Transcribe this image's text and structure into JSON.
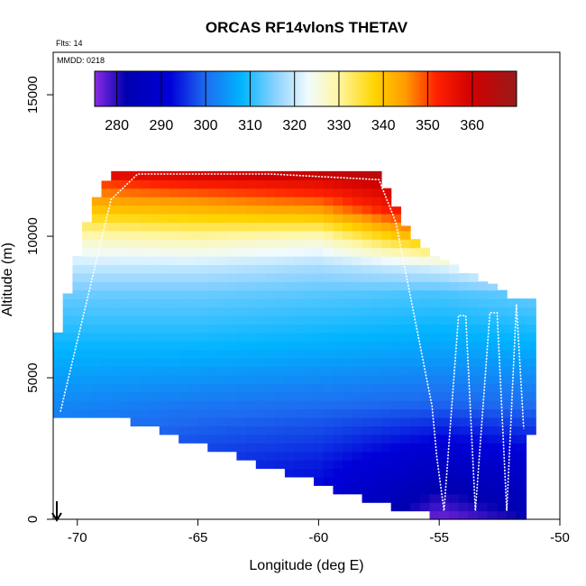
{
  "chart_data": {
    "type": "heatmap",
    "title": "ORCAS RF14vlonS THETAV",
    "xlabel": "Longitude (deg E)",
    "ylabel": "Altitude (m)",
    "xlim": [
      -71,
      -50
    ],
    "ylim": [
      0,
      16500
    ],
    "x_ticks": [
      -70,
      -65,
      -60,
      -55,
      -50
    ],
    "x_tick_labels": [
      "-70",
      "-65",
      "-60",
      "-55",
      "-50"
    ],
    "y_ticks": [
      0,
      5000,
      10000,
      15000
    ],
    "y_tick_labels": [
      "0",
      "5000",
      "10000",
      "15000"
    ],
    "annotation_flts": "Flts: 14",
    "annotation_mmdd": "MMDD: 0218",
    "colorbar": {
      "range": [
        275,
        370
      ],
      "ticks": [
        280,
        290,
        300,
        310,
        320,
        330,
        340,
        350,
        360
      ],
      "tick_labels": [
        "280",
        "290",
        "300",
        "310",
        "320",
        "330",
        "340",
        "350",
        "360"
      ],
      "stops": [
        {
          "v": 275,
          "color": "#8a2be2"
        },
        {
          "v": 282,
          "color": "#0000b0"
        },
        {
          "v": 292,
          "color": "#0000d8"
        },
        {
          "v": 300,
          "color": "#1e6cf0"
        },
        {
          "v": 308,
          "color": "#00b4ff"
        },
        {
          "v": 316,
          "color": "#8fd3ff"
        },
        {
          "v": 323,
          "color": "#f0fbff"
        },
        {
          "v": 330,
          "color": "#fff6a0"
        },
        {
          "v": 338,
          "color": "#ffd400"
        },
        {
          "v": 345,
          "color": "#ff9a00"
        },
        {
          "v": 352,
          "color": "#ff2000"
        },
        {
          "v": 360,
          "color": "#d00000"
        },
        {
          "v": 370,
          "color": "#9a1a1a"
        }
      ]
    },
    "field": {
      "x_range": [
        -71,
        -51
      ],
      "top_edge": [
        [
          -71,
          5800
        ],
        [
          -70.5,
          7500
        ],
        [
          -69.5,
          10800
        ],
        [
          -68.6,
          12100
        ],
        [
          -68,
          12300
        ],
        [
          -57.5,
          12300
        ],
        [
          -56.5,
          10300
        ],
        [
          -55,
          9100
        ],
        [
          -53.5,
          8500
        ],
        [
          -52,
          7800
        ],
        [
          -51.2,
          7700
        ]
      ],
      "bottom_edge": [
        [
          -71,
          3900
        ],
        [
          -68,
          3700
        ],
        [
          -65,
          2800
        ],
        [
          -61,
          1700
        ],
        [
          -58,
          800
        ],
        [
          -55.5,
          300
        ],
        [
          -54,
          0
        ],
        [
          -51.6,
          200
        ],
        [
          -51.2,
          3200
        ]
      ],
      "column_temps": [
        {
          "x": -71,
          "z": [
            0,
            2000,
            4000,
            6000,
            8000,
            9000,
            10000,
            11000,
            12000,
            12300
          ],
          "t": [
            297,
            298,
            303,
            308,
            314,
            320,
            328,
            340,
            350,
            360
          ]
        },
        {
          "x": -65,
          "z": [
            0,
            2000,
            4000,
            6000,
            8000,
            9000,
            10000,
            11000,
            12000,
            12300
          ],
          "t": [
            293,
            296,
            301,
            308,
            314,
            320,
            330,
            342,
            355,
            362
          ]
        },
        {
          "x": -60,
          "z": [
            0,
            2000,
            4000,
            6000,
            8000,
            9000,
            10000,
            11000,
            12000,
            12300
          ],
          "t": [
            290,
            294,
            300,
            307,
            313,
            318,
            328,
            345,
            358,
            365
          ]
        },
        {
          "x": -55,
          "z": [
            0,
            2000,
            4000,
            6000,
            8000,
            9000,
            10000,
            11000,
            12000,
            12300
          ],
          "t": [
            276,
            287,
            299,
            306,
            312,
            322,
            345,
            360,
            365,
            367
          ]
        },
        {
          "x": -51,
          "z": [
            0,
            2000,
            4000,
            6000,
            8000,
            9000,
            10000,
            11000,
            12000,
            12300
          ],
          "t": [
            282,
            290,
            300,
            307,
            314,
            330,
            350,
            360,
            365,
            367
          ]
        }
      ]
    },
    "flight_track": [
      [
        -70.7,
        3800
      ],
      [
        -68.6,
        11300
      ],
      [
        -67.5,
        12200
      ],
      [
        -62,
        12200
      ],
      [
        -57.5,
        12000
      ],
      [
        -56.8,
        10500
      ],
      [
        -55.3,
        4000
      ],
      [
        -55.1,
        2200
      ],
      [
        -54.8,
        300
      ],
      [
        -54.2,
        7200
      ],
      [
        -53.9,
        7200
      ],
      [
        -53.5,
        300
      ],
      [
        -52.9,
        7300
      ],
      [
        -52.6,
        7300
      ],
      [
        -52.2,
        300
      ],
      [
        -51.8,
        7600
      ],
      [
        -51.5,
        3200
      ]
    ]
  }
}
